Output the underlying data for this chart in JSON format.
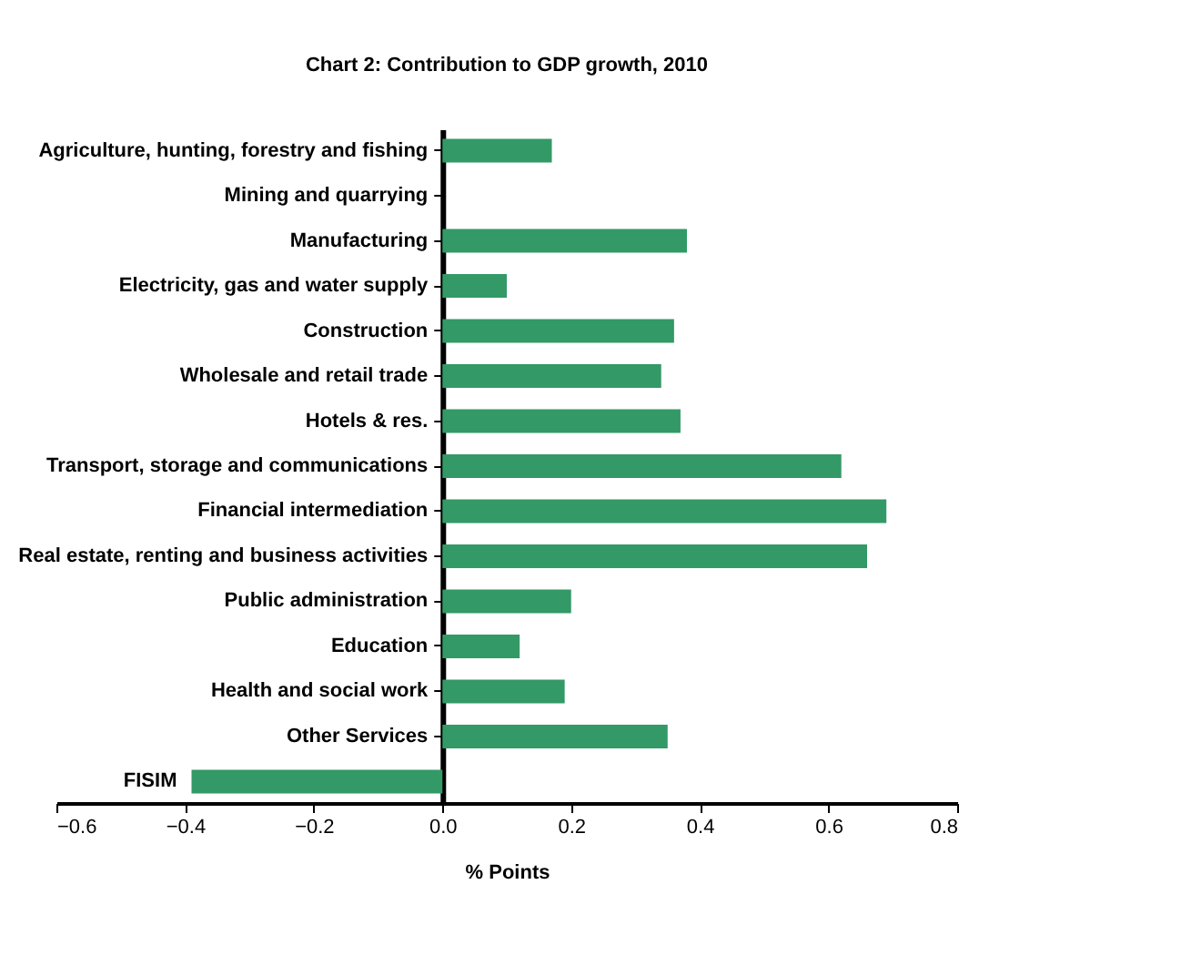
{
  "chart_data": {
    "type": "bar",
    "orientation": "horizontal",
    "title": "Chart 2: Contribution to GDP growth, 2010",
    "xlabel": "% Points",
    "categories": [
      "Agriculture, hunting, forestry and fishing",
      "Mining and quarrying",
      "Manufacturing",
      "Electricity, gas and water supply",
      "Construction",
      "Wholesale and retail trade",
      "Hotels & res.",
      "Transport, storage and communications",
      "Financial intermediation",
      "Real estate, renting and business activities",
      "Public administration",
      "Education",
      "Health and social work",
      "Other Services",
      "FISIM"
    ],
    "values": [
      0.17,
      0,
      0.38,
      0.1,
      0.36,
      0.34,
      0.37,
      0.62,
      0.69,
      0.66,
      0.2,
      0.12,
      0.19,
      0.35,
      -0.39
    ],
    "color": "#339966",
    "xlim": [
      -0.6,
      0.8
    ],
    "xticks": [
      -0.6,
      -0.4,
      -0.2,
      {
        "value": 0,
        "label": "0.0"
      },
      0.2,
      0.4,
      0.6,
      0.8
    ],
    "grid": false
  }
}
